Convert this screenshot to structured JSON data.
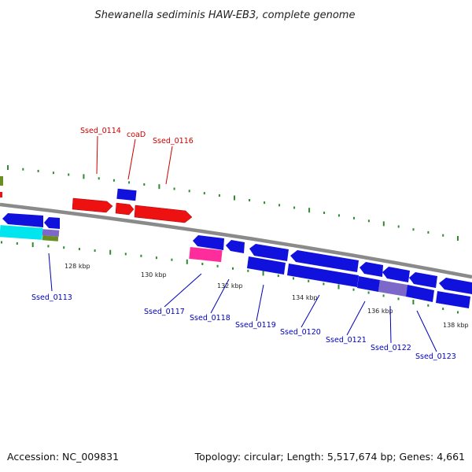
{
  "title": "Shewanella sediminis HAW-EB3, complete genome",
  "footer": {
    "accession": "Accession: NC_009831",
    "topology": "Topology: circular; Length: 5,517,674 bp; Genes: 4,661"
  },
  "colors": {
    "backbone": "#8a8a8a",
    "tick_dots": "#2e8b2e",
    "forward_gene": "#ee1111",
    "reverse_gene": "#1111dd",
    "label_forward": "#cc0000",
    "label_reverse": "#0000bb",
    "magenta_gene": "#ff2d9b",
    "cyan_gene": "#00e5ee",
    "olive_gene": "#6b8e23",
    "slate_gene": "#7b68c8"
  },
  "scale_labels": [
    "128 kbp",
    "130 kbp",
    "132 kbp",
    "134 kbp",
    "136 kbp",
    "138 kbp"
  ],
  "gene_labels": {
    "forward": [
      "Ssed_0114",
      "coaD",
      "Ssed_0116"
    ],
    "reverse": [
      "Ssed_0113",
      "Ssed_0117",
      "Ssed_0118",
      "Ssed_0119",
      "Ssed_0120",
      "Ssed_0121",
      "Ssed_0122",
      "Ssed_0123"
    ]
  }
}
